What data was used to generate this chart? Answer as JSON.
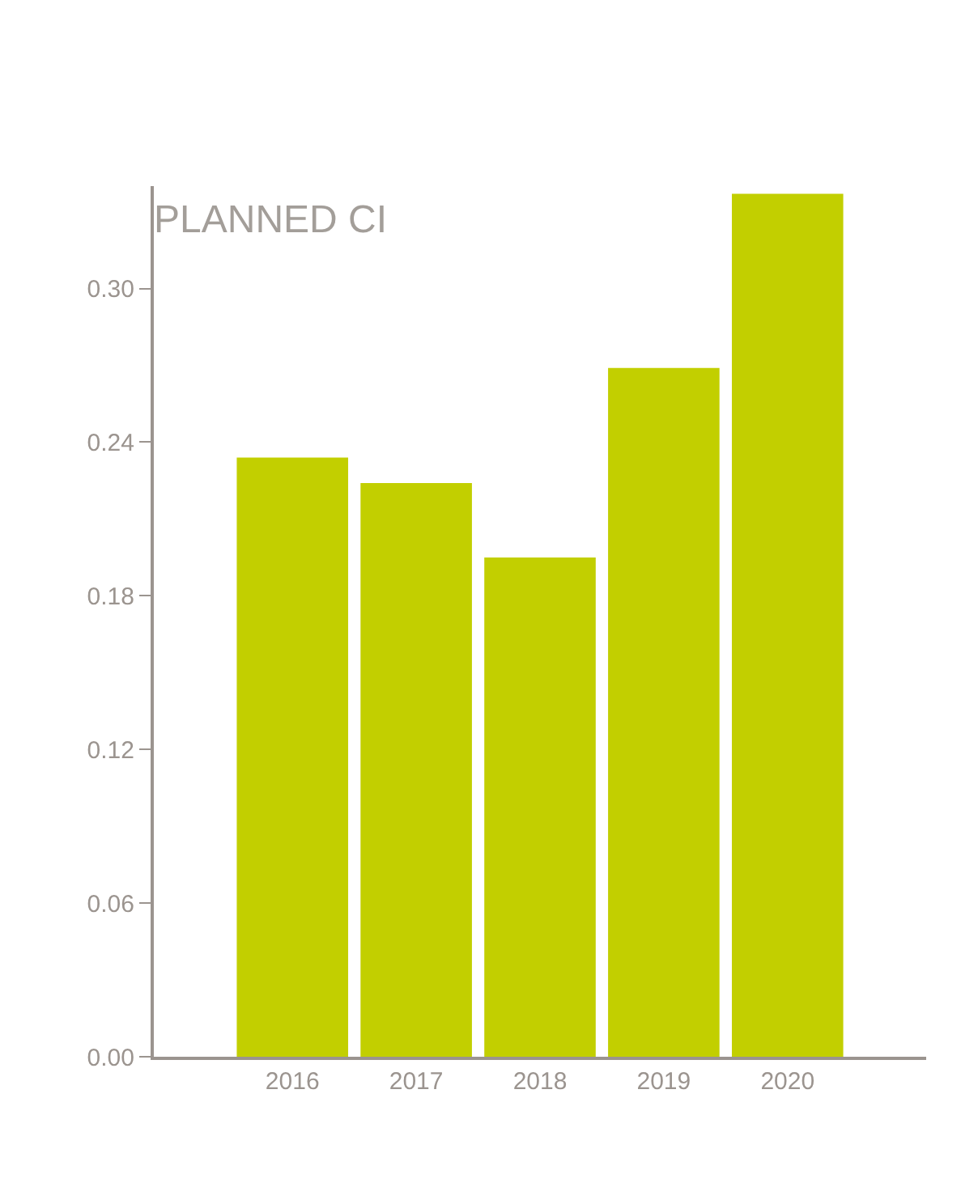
{
  "chart_data": {
    "type": "bar",
    "title": "PLANNED CI",
    "categories": [
      "2016",
      "2017",
      "2018",
      "2019",
      "2020"
    ],
    "values": [
      0.234,
      0.224,
      0.195,
      0.269,
      0.337
    ],
    "color": "#c2cf00",
    "ylim": [
      0,
      0.34
    ],
    "yticks": [
      {
        "value": 0,
        "label": "0.00"
      },
      0.06,
      0.12,
      0.18,
      0.24,
      {
        "value": 0.3,
        "label": "0.30"
      }
    ]
  }
}
